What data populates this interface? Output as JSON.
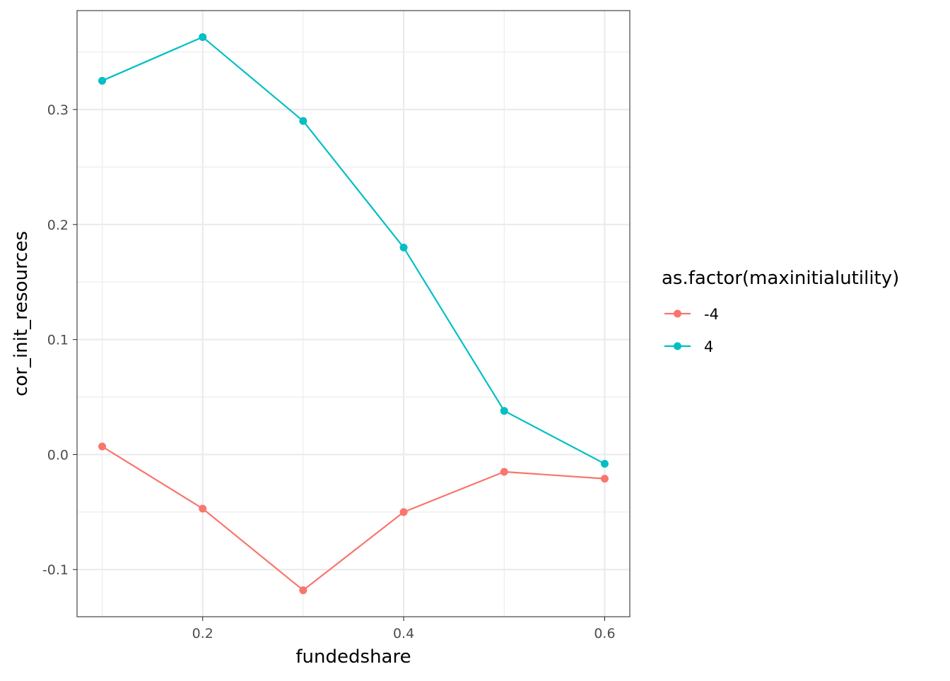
{
  "chart_data": {
    "type": "line",
    "title": "",
    "xlabel": "fundedshare",
    "ylabel": "cor_init_resources",
    "x": [
      0.1,
      0.2,
      0.3,
      0.4,
      0.5,
      0.6
    ],
    "xlim": [
      0.075,
      0.625
    ],
    "ylim": [
      -0.141,
      0.386
    ],
    "x_ticks": [
      0.2,
      0.4,
      0.6
    ],
    "x_tick_labels": [
      "0.2",
      "0.4",
      "0.6"
    ],
    "y_ticks": [
      -0.1,
      0.0,
      0.1,
      0.2,
      0.3
    ],
    "y_tick_labels": [
      "-0.1",
      "0.0",
      "0.1",
      "0.2",
      "0.3"
    ],
    "grid": true,
    "theme": "bw",
    "legend": {
      "title": "as.factor(maxinitialutility)",
      "position": "right"
    },
    "series": [
      {
        "name": "-4",
        "color": "#F8766D",
        "values": [
          0.007,
          -0.047,
          -0.118,
          -0.05,
          -0.015,
          -0.021
        ]
      },
      {
        "name": "4",
        "color": "#00BFC4",
        "values": [
          0.325,
          0.363,
          0.29,
          0.18,
          0.038,
          -0.008
        ]
      }
    ]
  }
}
